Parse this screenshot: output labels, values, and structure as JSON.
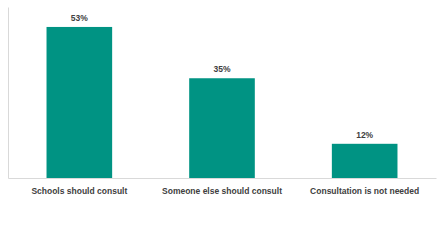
{
  "chart_data": {
    "type": "bar",
    "categories": [
      "Schools should consult",
      "Someone else should consult",
      "Consultation is not needed"
    ],
    "values": [
      53,
      35,
      12
    ],
    "value_labels": [
      "53%",
      "35%",
      "12%"
    ],
    "color": "#009383",
    "ylim": [
      0,
      60
    ],
    "yticks": [],
    "data_labels": true,
    "tick_labels": "x",
    "grid": false
  }
}
